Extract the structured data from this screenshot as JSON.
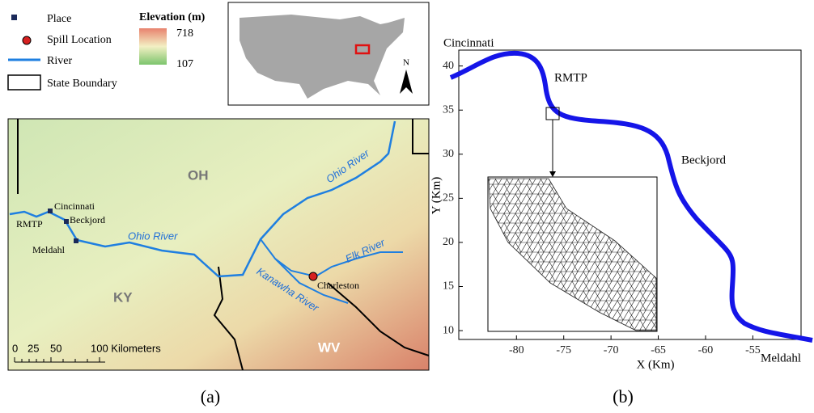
{
  "panel_a": {
    "legend": {
      "items": [
        "Place",
        "Spill Location",
        "River",
        "State Boundary"
      ],
      "elevation_title": "Elevation (m)",
      "elevation_max": "718",
      "elevation_min": "107"
    },
    "states": [
      "OH",
      "KY",
      "WV"
    ],
    "places": [
      "Cincinnati",
      "RMTP",
      "Beckjord",
      "Meldahl",
      "Charleston"
    ],
    "rivers": [
      "Ohio River",
      "Ohio River",
      "Elk River",
      "Kanawha River"
    ],
    "scale_bar": [
      "0",
      "25",
      "50",
      "100 Kilometers"
    ],
    "north": "N",
    "caption": "(a)"
  },
  "panel_b": {
    "x_label": "X (Km)",
    "y_label": "Y (Km)",
    "xlim": [
      -86.1,
      -49.9
    ],
    "ylim": [
      9,
      41.8
    ],
    "xticks": [
      -80,
      -75,
      -70,
      -65,
      -60,
      -55
    ],
    "yticks": [
      10,
      15,
      20,
      25,
      30,
      35,
      40
    ],
    "labels": [
      "Cincinnati",
      "RMTP",
      "Beckjord",
      "Meldahl"
    ],
    "caption": "(b)"
  }
}
